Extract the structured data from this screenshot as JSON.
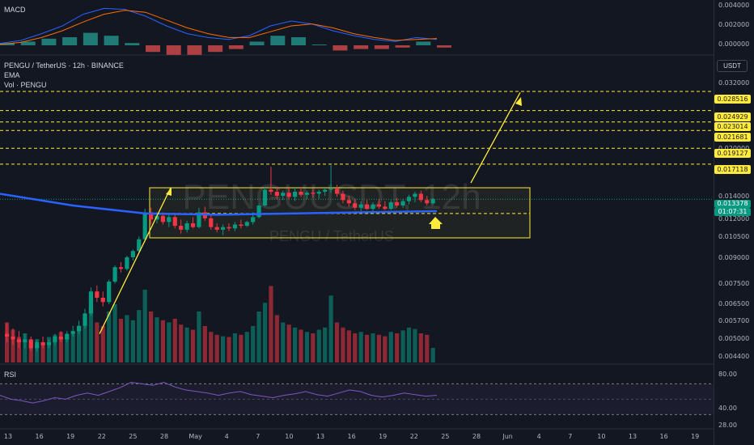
{
  "panes": {
    "macd_label": "MACD",
    "main_labels": [
      "PENGU / TetherUS · 12h · BINANCE",
      "EMA",
      "Vol · PENGU"
    ],
    "rsi_label": "RSI",
    "unit": "USDT",
    "watermark_symbol": "PENGUUSDT, 12h",
    "watermark_name": "PENGU / TetherUS"
  },
  "price_axis": {
    "macd_ticks": [
      "0.004000",
      "0.002000",
      "0.000000"
    ],
    "main_ticks": [
      "0.032000",
      "0.020000",
      "0.014000",
      "0.012000",
      "0.010500",
      "0.009000",
      "0.007500",
      "0.006500",
      "0.005700",
      "0.005000",
      "0.004400"
    ],
    "rsi_ticks": [
      "80.00",
      "40.00",
      "28.00"
    ]
  },
  "levels": [
    {
      "label": "0.028516",
      "price": 0.028516
    },
    {
      "label": "0.024929",
      "price": 0.024929
    },
    {
      "label": "0.023014",
      "price": 0.023014
    },
    {
      "label": "0.021681",
      "price": 0.021681
    },
    {
      "label": "0.019127",
      "price": 0.019127
    },
    {
      "label": "0.017118",
      "price": 0.017118
    }
  ],
  "last_price": {
    "label": "0.013378",
    "countdown": "01:07:31",
    "color": "#089981"
  },
  "ema_value": {
    "label": "0.012",
    "color": "#2962ff"
  },
  "colors": {
    "up": "#089981",
    "down": "#f23645",
    "ema": "#2962ff",
    "level": "#ffeb3b",
    "rsi": "#7e57c2",
    "macd": "#2962ff",
    "signal": "#ff6d00"
  },
  "x_axis": [
    "13",
    "16",
    "19",
    "22",
    "25",
    "28",
    "May",
    "4",
    "7",
    "10",
    "13",
    "16",
    "19",
    "22",
    "25",
    "28",
    "Jun",
    "4",
    "7",
    "10",
    "13",
    "16",
    "19"
  ],
  "chart_data": {
    "type": "candlestick",
    "title": "PENGU / TetherUS · 12h · BINANCE",
    "interval": "12h",
    "scale": "log",
    "candles": [
      [
        0.0052,
        0.0056,
        0.0049,
        0.0051
      ],
      [
        0.0051,
        0.0054,
        0.0048,
        0.005
      ],
      [
        0.005,
        0.0053,
        0.0047,
        0.0049
      ],
      [
        0.0049,
        0.0052,
        0.0047,
        0.005
      ],
      [
        0.005,
        0.0051,
        0.0046,
        0.0047
      ],
      [
        0.0047,
        0.005,
        0.0046,
        0.0049
      ],
      [
        0.0049,
        0.0051,
        0.0047,
        0.0048
      ],
      [
        0.0048,
        0.005,
        0.0047,
        0.0049
      ],
      [
        0.0049,
        0.0052,
        0.0048,
        0.0051
      ],
      [
        0.0051,
        0.0053,
        0.0049,
        0.005
      ],
      [
        0.005,
        0.0053,
        0.0049,
        0.0052
      ],
      [
        0.0052,
        0.0055,
        0.0051,
        0.0053
      ],
      [
        0.0053,
        0.0057,
        0.0052,
        0.0055
      ],
      [
        0.0055,
        0.0062,
        0.0054,
        0.006
      ],
      [
        0.006,
        0.0072,
        0.0059,
        0.007
      ],
      [
        0.007,
        0.0073,
        0.0065,
        0.0067
      ],
      [
        0.0067,
        0.007,
        0.0063,
        0.0065
      ],
      [
        0.0065,
        0.0076,
        0.0064,
        0.0075
      ],
      [
        0.0075,
        0.0084,
        0.0074,
        0.0083
      ],
      [
        0.0083,
        0.0086,
        0.008,
        0.0082
      ],
      [
        0.0082,
        0.009,
        0.0081,
        0.0089
      ],
      [
        0.0089,
        0.0094,
        0.0087,
        0.0093
      ],
      [
        0.0093,
        0.0103,
        0.0092,
        0.0101
      ],
      [
        0.0101,
        0.0125,
        0.0099,
        0.0122
      ],
      [
        0.0122,
        0.0126,
        0.0112,
        0.0116
      ],
      [
        0.0116,
        0.0122,
        0.0113,
        0.0119
      ],
      [
        0.0119,
        0.0122,
        0.0112,
        0.0114
      ],
      [
        0.0114,
        0.012,
        0.011,
        0.0118
      ],
      [
        0.0118,
        0.0121,
        0.0109,
        0.0111
      ],
      [
        0.0111,
        0.0116,
        0.0105,
        0.0108
      ],
      [
        0.0108,
        0.0115,
        0.0106,
        0.0113
      ],
      [
        0.0113,
        0.0118,
        0.0109,
        0.011
      ],
      [
        0.011,
        0.0126,
        0.0109,
        0.0122
      ],
      [
        0.0122,
        0.0127,
        0.0115,
        0.0117
      ],
      [
        0.0117,
        0.012,
        0.0108,
        0.011
      ],
      [
        0.011,
        0.0113,
        0.0106,
        0.0108
      ],
      [
        0.0108,
        0.0112,
        0.0104,
        0.011
      ],
      [
        0.011,
        0.0113,
        0.0107,
        0.0109
      ],
      [
        0.0109,
        0.0114,
        0.0107,
        0.0112
      ],
      [
        0.0112,
        0.0116,
        0.0109,
        0.0111
      ],
      [
        0.0111,
        0.0115,
        0.011,
        0.0114
      ],
      [
        0.0114,
        0.0122,
        0.0112,
        0.0118
      ],
      [
        0.0118,
        0.013,
        0.0117,
        0.0128
      ],
      [
        0.0128,
        0.0146,
        0.0127,
        0.0143
      ],
      [
        0.0143,
        0.0168,
        0.0138,
        0.0141
      ],
      [
        0.0141,
        0.0146,
        0.0134,
        0.0137
      ],
      [
        0.0137,
        0.0142,
        0.0133,
        0.014
      ],
      [
        0.014,
        0.0145,
        0.0134,
        0.0136
      ],
      [
        0.0136,
        0.0145,
        0.0132,
        0.0141
      ],
      [
        0.0141,
        0.0146,
        0.0136,
        0.0138
      ],
      [
        0.0138,
        0.0142,
        0.0134,
        0.014
      ],
      [
        0.014,
        0.0144,
        0.0135,
        0.0139
      ],
      [
        0.0139,
        0.0143,
        0.0134,
        0.0141
      ],
      [
        0.0141,
        0.0145,
        0.0137,
        0.0143
      ],
      [
        0.0143,
        0.017,
        0.014,
        0.0144
      ],
      [
        0.0144,
        0.0148,
        0.0136,
        0.0139
      ],
      [
        0.0139,
        0.0142,
        0.013,
        0.0133
      ],
      [
        0.0133,
        0.0137,
        0.0127,
        0.013
      ],
      [
        0.013,
        0.0134,
        0.0124,
        0.0126
      ],
      [
        0.0126,
        0.0132,
        0.0123,
        0.0129
      ],
      [
        0.0129,
        0.0133,
        0.0124,
        0.0125
      ],
      [
        0.0125,
        0.0131,
        0.0123,
        0.0129
      ],
      [
        0.0129,
        0.0134,
        0.0125,
        0.0127
      ],
      [
        0.0127,
        0.0132,
        0.0124,
        0.0125
      ],
      [
        0.0125,
        0.0133,
        0.0124,
        0.0131
      ],
      [
        0.0131,
        0.0135,
        0.0126,
        0.0128
      ],
      [
        0.0128,
        0.0134,
        0.0126,
        0.0132
      ],
      [
        0.0132,
        0.0138,
        0.0129,
        0.0136
      ],
      [
        0.0136,
        0.0141,
        0.0131,
        0.0139
      ],
      [
        0.0139,
        0.0142,
        0.0131,
        0.0133
      ],
      [
        0.0133,
        0.0137,
        0.0128,
        0.013
      ],
      [
        0.013,
        0.0135,
        0.0129,
        0.0134
      ]
    ],
    "volume": [
      0.55,
      0.45,
      0.35,
      0.4,
      0.3,
      0.32,
      0.28,
      0.35,
      0.38,
      0.42,
      0.36,
      0.4,
      0.48,
      0.62,
      0.85,
      0.55,
      0.5,
      0.7,
      0.8,
      0.6,
      0.65,
      0.58,
      0.72,
      1.0,
      0.7,
      0.62,
      0.58,
      0.55,
      0.6,
      0.52,
      0.48,
      0.45,
      0.7,
      0.5,
      0.42,
      0.38,
      0.36,
      0.35,
      0.4,
      0.38,
      0.42,
      0.5,
      0.7,
      0.82,
      1.05,
      0.65,
      0.55,
      0.52,
      0.48,
      0.45,
      0.42,
      0.4,
      0.45,
      0.48,
      0.92,
      0.55,
      0.48,
      0.44,
      0.4,
      0.42,
      0.38,
      0.4,
      0.38,
      0.36,
      0.42,
      0.4,
      0.44,
      0.48,
      0.46,
      0.4,
      0.38,
      0.2
    ],
    "ema_price": [
      0.0139,
      0.0128,
      0.0121,
      0.012,
      0.0121,
      0.0122,
      0.0123
    ],
    "rsi": [
      55,
      50,
      48,
      45,
      48,
      52,
      50,
      55,
      58,
      55,
      60,
      65,
      72,
      70,
      68,
      72,
      66,
      62,
      60,
      58,
      55,
      58,
      60,
      56,
      54,
      52,
      55,
      57,
      60,
      56,
      54,
      58,
      62,
      60,
      55,
      53,
      55,
      58,
      56,
      54,
      55
    ],
    "macd": [
      0.0002,
      0.0005,
      0.0012,
      0.002,
      0.0032,
      0.0038,
      0.0037,
      0.003,
      0.002,
      0.0012,
      0.0008,
      0.0006,
      0.001,
      0.002,
      0.0025,
      0.0022,
      0.0015,
      0.001,
      0.0006,
      0.0004,
      0.0008,
      0.0006
    ],
    "signal": [
      0.0001,
      0.0003,
      0.0008,
      0.0015,
      0.0024,
      0.0032,
      0.0036,
      0.0034,
      0.0026,
      0.0018,
      0.0012,
      0.0008,
      0.0008,
      0.0014,
      0.002,
      0.0022,
      0.0018,
      0.0012,
      0.0008,
      0.0005,
      0.0006,
      0.0007
    ],
    "range_box": {
      "top": 0.0145,
      "bottom": 0.0102
    },
    "ylim": [
      0.0044,
      0.034
    ]
  }
}
